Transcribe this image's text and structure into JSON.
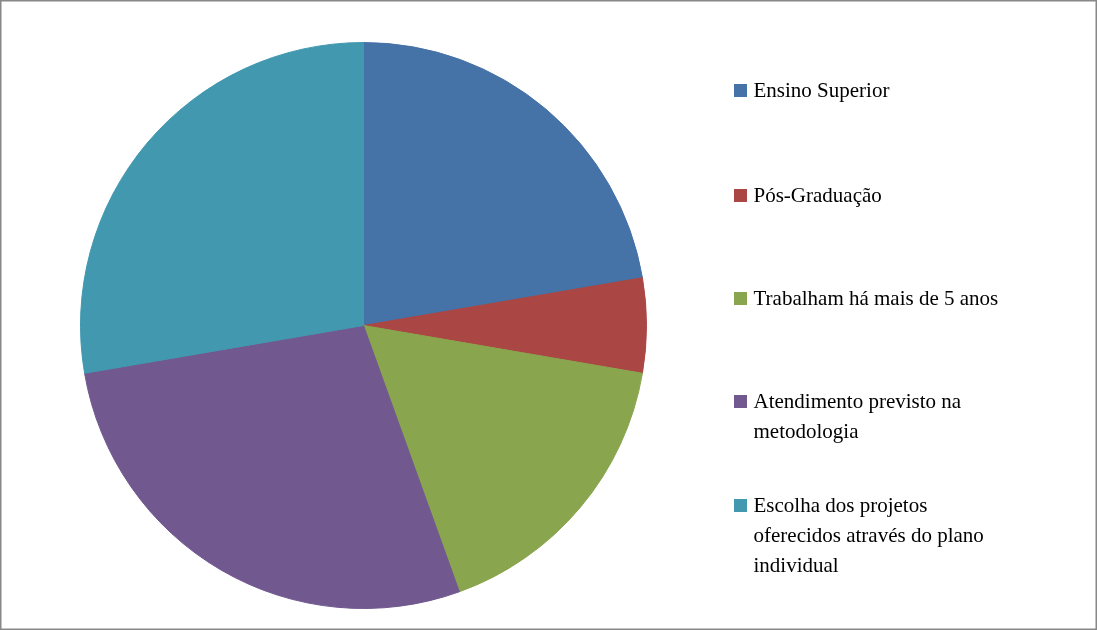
{
  "chart_data": {
    "type": "pie",
    "categories": [
      "Ensino Superior",
      "Pós-Graduação",
      "Trabalham há mais de 5 anos",
      "Atendimento previsto na metodologia",
      "Escolha dos projetos oferecidos através do plano individual"
    ],
    "values": [
      22.3,
      5.4,
      16.8,
      27.8,
      27.7
    ],
    "colors": [
      "#4572a7",
      "#aa4643",
      "#89a54e",
      "#71588f",
      "#4198af"
    ],
    "legend": "right"
  }
}
